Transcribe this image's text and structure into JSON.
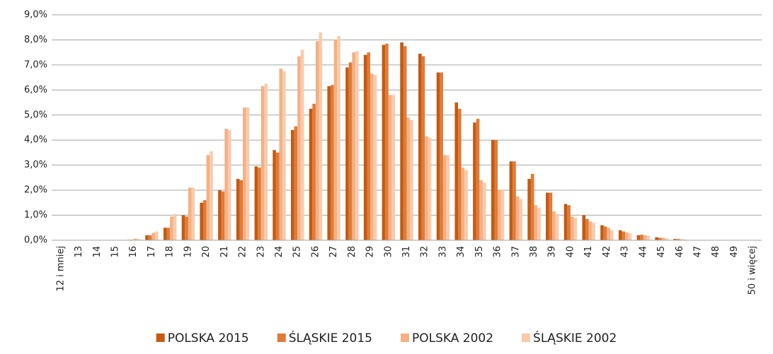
{
  "chart_data": {
    "type": "bar",
    "categories": [
      "12 i mniej",
      "13",
      "14",
      "15",
      "16",
      "17",
      "18",
      "19",
      "20",
      "21",
      "22",
      "23",
      "24",
      "25",
      "26",
      "27",
      "28",
      "29",
      "30",
      "31",
      "32",
      "33",
      "34",
      "35",
      "36",
      "37",
      "38",
      "39",
      "40",
      "41",
      "42",
      "43",
      "44",
      "45",
      "46",
      "47",
      "48",
      "49",
      "50 i więcej"
    ],
    "series": [
      {
        "name": "POLSKA 2015",
        "color": "#c55a11",
        "values": [
          0,
          0,
          0,
          0,
          0.02,
          0.2,
          0.5,
          1.0,
          1.5,
          2.0,
          2.45,
          2.95,
          3.6,
          4.4,
          5.25,
          6.15,
          6.9,
          7.4,
          7.8,
          7.9,
          7.45,
          6.7,
          5.5,
          4.7,
          4.0,
          3.15,
          2.45,
          1.9,
          1.45,
          1.0,
          0.6,
          0.4,
          0.2,
          0.12,
          0.05,
          0,
          0,
          0,
          0
        ]
      },
      {
        "name": "ŚLĄSKIE 2015",
        "color": "#e07b39",
        "values": [
          0,
          0,
          0,
          0,
          0.02,
          0.2,
          0.5,
          0.95,
          1.6,
          1.95,
          2.4,
          2.9,
          3.5,
          4.55,
          5.45,
          6.2,
          7.1,
          7.5,
          7.85,
          7.75,
          7.35,
          6.7,
          5.25,
          4.85,
          4.0,
          3.15,
          2.65,
          1.9,
          1.4,
          0.85,
          0.55,
          0.35,
          0.22,
          0.1,
          0.05,
          0,
          0,
          0,
          0
        ]
      },
      {
        "name": "POLSKA 2002",
        "color": "#f4b183",
        "values": [
          0,
          0,
          0,
          0,
          0.06,
          0.3,
          0.95,
          2.1,
          3.4,
          4.45,
          5.3,
          6.15,
          6.85,
          7.35,
          7.95,
          8.0,
          7.5,
          6.65,
          5.8,
          4.9,
          4.15,
          3.4,
          2.9,
          2.4,
          2.0,
          1.75,
          1.4,
          1.15,
          0.95,
          0.75,
          0.5,
          0.32,
          0.2,
          0.1,
          0.04,
          0,
          0,
          0,
          0
        ]
      },
      {
        "name": "ŚLĄSKIE 2002",
        "color": "#f8cbad",
        "values": [
          0,
          0,
          0,
          0,
          0.05,
          0.35,
          1.05,
          2.1,
          3.55,
          4.4,
          5.3,
          6.25,
          6.75,
          7.6,
          8.3,
          8.15,
          7.55,
          6.6,
          5.8,
          4.8,
          4.1,
          3.4,
          2.8,
          2.3,
          2.0,
          1.65,
          1.3,
          1.05,
          0.9,
          0.7,
          0.4,
          0.28,
          0.18,
          0.08,
          0.03,
          0,
          0,
          0,
          0
        ]
      }
    ],
    "ylim": [
      0,
      9
    ],
    "yticks": [
      {
        "value": 0,
        "label": "0,0%"
      },
      {
        "value": 1,
        "label": "1,0%"
      },
      {
        "value": 2,
        "label": "2,0%"
      },
      {
        "value": 3,
        "label": "3,0%"
      },
      {
        "value": 4,
        "label": "4,0%"
      },
      {
        "value": 5,
        "label": "5,0%"
      },
      {
        "value": 6,
        "label": "6,0%"
      },
      {
        "value": 7,
        "label": "7,0%"
      },
      {
        "value": 8,
        "label": "8,0%"
      },
      {
        "value": 9,
        "label": "9,0%"
      }
    ],
    "grid": true,
    "legend": "bottom"
  }
}
